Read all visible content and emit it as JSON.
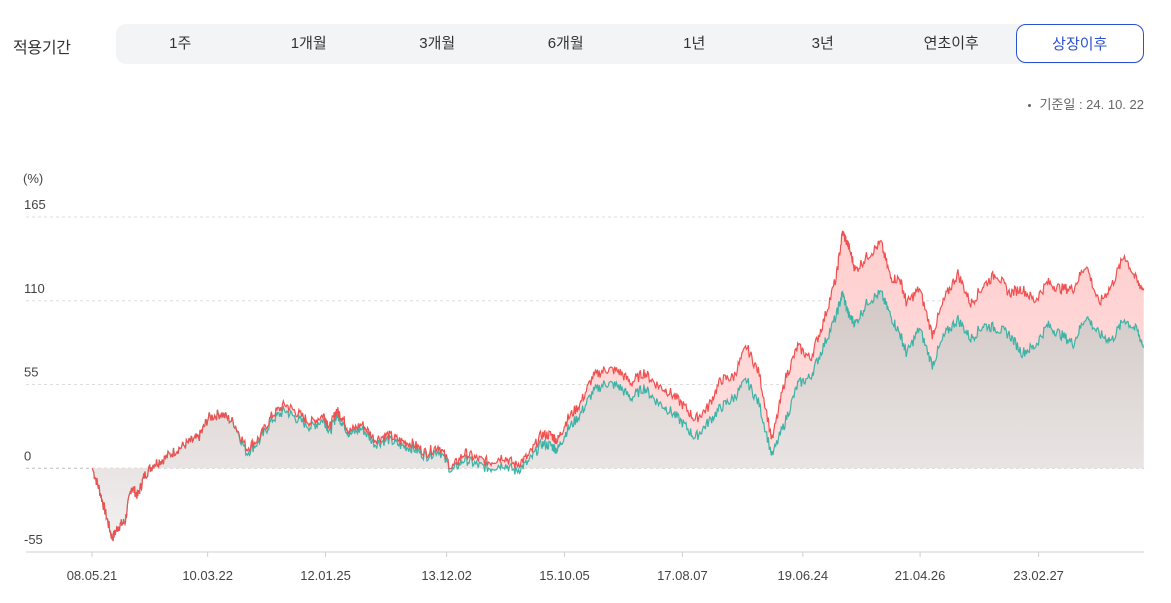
{
  "period_selector": {
    "label": "적용기간",
    "options": [
      "1주",
      "1개월",
      "3개월",
      "6개월",
      "1년",
      "3년",
      "연초이후",
      "상장이후"
    ],
    "selected": "상장이후"
  },
  "base_date": "기준일 : 24. 10. 22",
  "colors": {
    "series_red": "#f05050",
    "series_teal": "#3bb3a6",
    "accent": "#2a50d6",
    "grid": "#dddddd"
  },
  "chart_data": {
    "type": "line",
    "unit_label": "(%)",
    "yticks": [
      "165",
      "110",
      "55",
      "0",
      "-55"
    ],
    "ylim": [
      -55,
      165
    ],
    "xticks": [
      "08.05.21",
      "10.03.22",
      "12.01.25",
      "13.12.02",
      "15.10.05",
      "17.08.07",
      "19.06.24",
      "21.04.26",
      "23.02.27"
    ],
    "xlim": [
      2008.385,
      2024.805
    ],
    "grid": true,
    "series": [
      {
        "color": "#f05050",
        "x": [
          2008.39,
          2008.5,
          2008.6,
          2008.7,
          2008.8,
          2008.9,
          2009.0,
          2009.1,
          2009.2,
          2009.35,
          2009.5,
          2009.7,
          2009.9,
          2010.05,
          2010.2,
          2010.4,
          2010.6,
          2010.8,
          2011.0,
          2011.2,
          2011.4,
          2011.6,
          2011.8,
          2012.0,
          2012.1,
          2012.2,
          2012.3,
          2012.4,
          2012.6,
          2012.8,
          2013.0,
          2013.2,
          2013.4,
          2013.6,
          2013.8,
          2014.0,
          2014.2,
          2014.4,
          2014.6,
          2014.8,
          2015.0,
          2015.2,
          2015.4,
          2015.55,
          2015.65,
          2015.8,
          2016.0,
          2016.2,
          2016.4,
          2016.6,
          2016.8,
          2017.0,
          2017.2,
          2017.4,
          2017.6,
          2017.8,
          2018.0,
          2018.2,
          2018.4,
          2018.6,
          2018.8,
          2019.0,
          2019.2,
          2019.4,
          2019.6,
          2019.8,
          2020.0,
          2020.1,
          2020.2,
          2020.3,
          2020.5,
          2020.7,
          2020.85,
          2021.0,
          2021.1,
          2021.3,
          2021.5,
          2021.7,
          2021.9,
          2022.1,
          2022.3,
          2022.5,
          2022.7,
          2022.9,
          2023.1,
          2023.3,
          2023.5,
          2023.7,
          2023.9,
          2024.1,
          2024.3,
          2024.5,
          2024.7,
          2024.8
        ],
        "y": [
          0,
          -14,
          -30,
          -46,
          -38,
          -35,
          -12,
          -18,
          -5,
          3,
          6,
          12,
          17,
          20,
          33,
          36,
          30,
          13,
          20,
          35,
          42,
          36,
          30,
          35,
          27,
          38,
          33,
          24,
          29,
          19,
          22,
          18,
          16,
          10,
          15,
          0,
          10,
          6,
          4,
          8,
          2,
          8,
          22,
          22,
          18,
          32,
          42,
          60,
          65,
          64,
          56,
          63,
          55,
          50,
          42,
          32,
          40,
          58,
          60,
          80,
          62,
          18,
          58,
          80,
          72,
          96,
          125,
          155,
          145,
          130,
          140,
          148,
          125,
          124,
          108,
          118,
          88,
          112,
          128,
          108,
          120,
          128,
          115,
          118,
          110,
          122,
          118,
          118,
          134,
          108,
          120,
          140,
          122,
          118
        ],
        "fill": "#ffcfcf"
      },
      {
        "color": "#3bb3a6",
        "x": [
          2008.39,
          2008.5,
          2008.6,
          2008.7,
          2008.8,
          2008.9,
          2009.0,
          2009.1,
          2009.2,
          2009.35,
          2009.5,
          2009.7,
          2009.9,
          2010.05,
          2010.2,
          2010.4,
          2010.6,
          2010.8,
          2011.0,
          2011.2,
          2011.4,
          2011.6,
          2011.8,
          2012.0,
          2012.1,
          2012.2,
          2012.3,
          2012.4,
          2012.6,
          2012.8,
          2013.0,
          2013.2,
          2013.4,
          2013.6,
          2013.8,
          2014.0,
          2014.2,
          2014.4,
          2014.6,
          2014.8,
          2015.0,
          2015.2,
          2015.4,
          2015.55,
          2015.65,
          2015.8,
          2016.0,
          2016.2,
          2016.4,
          2016.6,
          2016.8,
          2017.0,
          2017.2,
          2017.4,
          2017.6,
          2017.8,
          2018.0,
          2018.2,
          2018.4,
          2018.6,
          2018.8,
          2019.0,
          2019.2,
          2019.4,
          2019.6,
          2019.8,
          2020.0,
          2020.1,
          2020.2,
          2020.3,
          2020.5,
          2020.7,
          2020.85,
          2021.0,
          2021.1,
          2021.3,
          2021.5,
          2021.7,
          2021.9,
          2022.1,
          2022.3,
          2022.5,
          2022.7,
          2022.9,
          2023.1,
          2023.3,
          2023.5,
          2023.7,
          2023.9,
          2024.1,
          2024.3,
          2024.5,
          2024.7,
          2024.8
        ],
        "y": [
          0,
          -14,
          -30,
          -46,
          -38,
          -35,
          -12,
          -18,
          -5,
          3,
          6,
          12,
          17,
          20,
          33,
          36,
          30,
          10,
          18,
          32,
          38,
          32,
          27,
          32,
          24,
          35,
          30,
          22,
          26,
          16,
          19,
          15,
          13,
          8,
          12,
          -2,
          6,
          2,
          0,
          3,
          -2,
          4,
          16,
          15,
          12,
          25,
          35,
          50,
          56,
          54,
          46,
          53,
          44,
          38,
          30,
          20,
          30,
          40,
          46,
          58,
          42,
          8,
          30,
          55,
          60,
          80,
          100,
          115,
          100,
          95,
          110,
          115,
          100,
          88,
          75,
          92,
          68,
          88,
          98,
          85,
          94,
          92,
          88,
          76,
          80,
          94,
          88,
          82,
          100,
          88,
          84,
          98,
          90,
          80
        ],
        "fill": "#dcd8d6"
      }
    ]
  }
}
